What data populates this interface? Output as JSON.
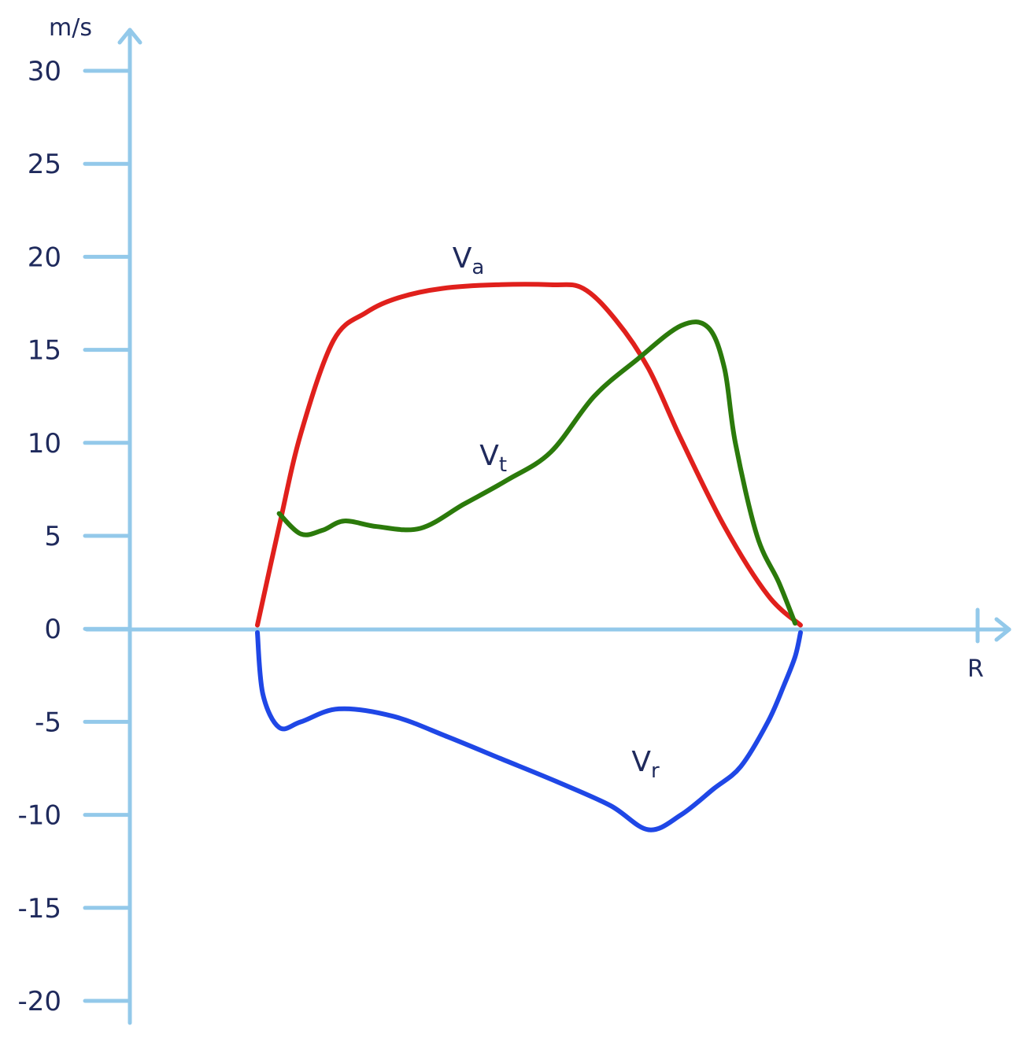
{
  "chart_data": {
    "type": "line",
    "y_unit_label": "m/s",
    "x_axis_label": "R",
    "ylim": [
      -20,
      30
    ],
    "yticks": [
      "30",
      "25",
      "20",
      "15",
      "10",
      "5",
      "0",
      "-5",
      "-10",
      "-15",
      "-20"
    ],
    "ytick_values": [
      30,
      25,
      20,
      15,
      10,
      5,
      0,
      -5,
      -10,
      -15,
      -20
    ],
    "grid": false,
    "legend": "none",
    "series": [
      {
        "name": "Va",
        "label_main": "V",
        "label_sub": "a",
        "color": "#e0201c",
        "x": [
          0.0,
          0.04,
          0.08,
          0.14,
          0.2,
          0.26,
          0.34,
          0.44,
          0.54,
          0.6,
          0.66,
          0.72,
          0.78,
          0.86,
          0.94,
          1.0
        ],
        "y": [
          0.2,
          5.5,
          10.5,
          15.5,
          17.0,
          17.8,
          18.3,
          18.5,
          18.5,
          18.3,
          16.6,
          14.0,
          10.2,
          5.5,
          1.8,
          0.2
        ]
      },
      {
        "name": "Vt",
        "label_main": "V",
        "label_sub": "t",
        "color": "#2b7a0b",
        "x": [
          0.04,
          0.08,
          0.12,
          0.16,
          0.22,
          0.3,
          0.38,
          0.46,
          0.54,
          0.62,
          0.7,
          0.78,
          0.83,
          0.86,
          0.88,
          0.92,
          0.96,
          0.99
        ],
        "y": [
          6.2,
          5.1,
          5.3,
          5.8,
          5.5,
          5.4,
          6.7,
          8.0,
          9.5,
          12.5,
          14.5,
          16.3,
          16.2,
          14.0,
          10.0,
          5.0,
          2.5,
          0.3
        ]
      },
      {
        "name": "Vr",
        "label_main": "V",
        "label_sub": "r",
        "color": "#1f47e6",
        "x": [
          0.0,
          0.01,
          0.04,
          0.08,
          0.15,
          0.25,
          0.35,
          0.45,
          0.55,
          0.65,
          0.72,
          0.78,
          0.84,
          0.89,
          0.94,
          0.97,
          0.99,
          1.0
        ],
        "y": [
          -0.2,
          -3.5,
          -5.3,
          -5.0,
          -4.3,
          -4.7,
          -5.8,
          -7.0,
          -8.2,
          -9.5,
          -10.8,
          -10.0,
          -8.6,
          -7.4,
          -5.0,
          -3.0,
          -1.5,
          -0.2
        ]
      }
    ]
  }
}
